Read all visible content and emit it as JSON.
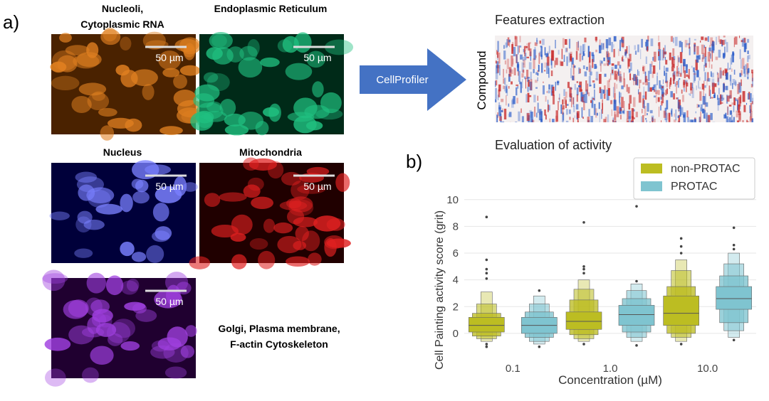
{
  "panel_a": {
    "label": "a)",
    "images": [
      {
        "title": [
          "Nucleoli,",
          "Cytoplasmic RNA"
        ],
        "scale": "50 µm"
      },
      {
        "title": [
          "Endoplasmic Reticulum"
        ],
        "scale": "50 µm"
      },
      {
        "title": [
          "Nucleus"
        ],
        "scale": "50 µm"
      },
      {
        "title": [
          "Mitochondria"
        ],
        "scale": "50 µm"
      },
      {
        "title": [
          "Golgi, Plasma membrane,",
          "F-actin Cytoskeleton"
        ],
        "scale": "50 µm"
      }
    ],
    "tool": "CellProfiler",
    "features_title": "Features extraction",
    "heatmap_ylabel": "Compound"
  },
  "chart_data": {
    "type": "boxen",
    "label": "b)",
    "title": "Evaluation of activity",
    "xlabel": "Concentration  (µM)",
    "ylabel": "Cell Painting activity score (grit)",
    "categories": [
      "0.1",
      "1.0",
      "10.0"
    ],
    "ylim": [
      -1.6,
      10.2
    ],
    "yticks": [
      0,
      2,
      4,
      6,
      8,
      10
    ],
    "grid": true,
    "legend": "upper right",
    "series": [
      {
        "name": "non-PROTAC",
        "color": "#bcbd22",
        "medians": [
          0.6,
          0.9,
          1.5
        ],
        "boxes": [
          [
            [
              0.1,
              1.2
            ],
            [
              -0.2,
              1.5
            ],
            [
              -0.4,
              2.2
            ],
            [
              -0.6,
              3.1
            ]
          ],
          [
            [
              0.3,
              1.6
            ],
            [
              -0.1,
              2.5
            ],
            [
              -0.4,
              3.3
            ],
            [
              -0.6,
              4.0
            ]
          ],
          [
            [
              0.6,
              2.8
            ],
            [
              0.0,
              3.5
            ],
            [
              -0.3,
              4.7
            ],
            [
              -0.6,
              5.5
            ]
          ]
        ],
        "outliers": [
          [
            4.1,
            4.5,
            4.8,
            5.5,
            8.7,
            -0.8,
            -1.0
          ],
          [
            4.5,
            4.8,
            5.0,
            8.3,
            -0.8
          ],
          [
            6.0,
            6.5,
            7.1,
            -0.8
          ]
        ]
      },
      {
        "name": "PROTAC",
        "color": "#7fc4d0",
        "medians": [
          0.6,
          1.4,
          2.6
        ],
        "boxes": [
          [
            [
              0.0,
              1.2
            ],
            [
              -0.3,
              1.6
            ],
            [
              -0.6,
              2.2
            ],
            [
              -0.8,
              2.8
            ]
          ],
          [
            [
              0.6,
              2.1
            ],
            [
              0.1,
              2.6
            ],
            [
              -0.3,
              3.2
            ],
            [
              -0.6,
              3.7
            ]
          ],
          [
            [
              1.8,
              3.5
            ],
            [
              0.8,
              4.3
            ],
            [
              0.2,
              5.2
            ],
            [
              -0.3,
              6.0
            ]
          ]
        ],
        "outliers": [
          [
            3.2,
            -1.0
          ],
          [
            3.9,
            9.5,
            -0.9
          ],
          [
            6.3,
            6.6,
            7.9,
            -0.5
          ]
        ]
      }
    ]
  }
}
